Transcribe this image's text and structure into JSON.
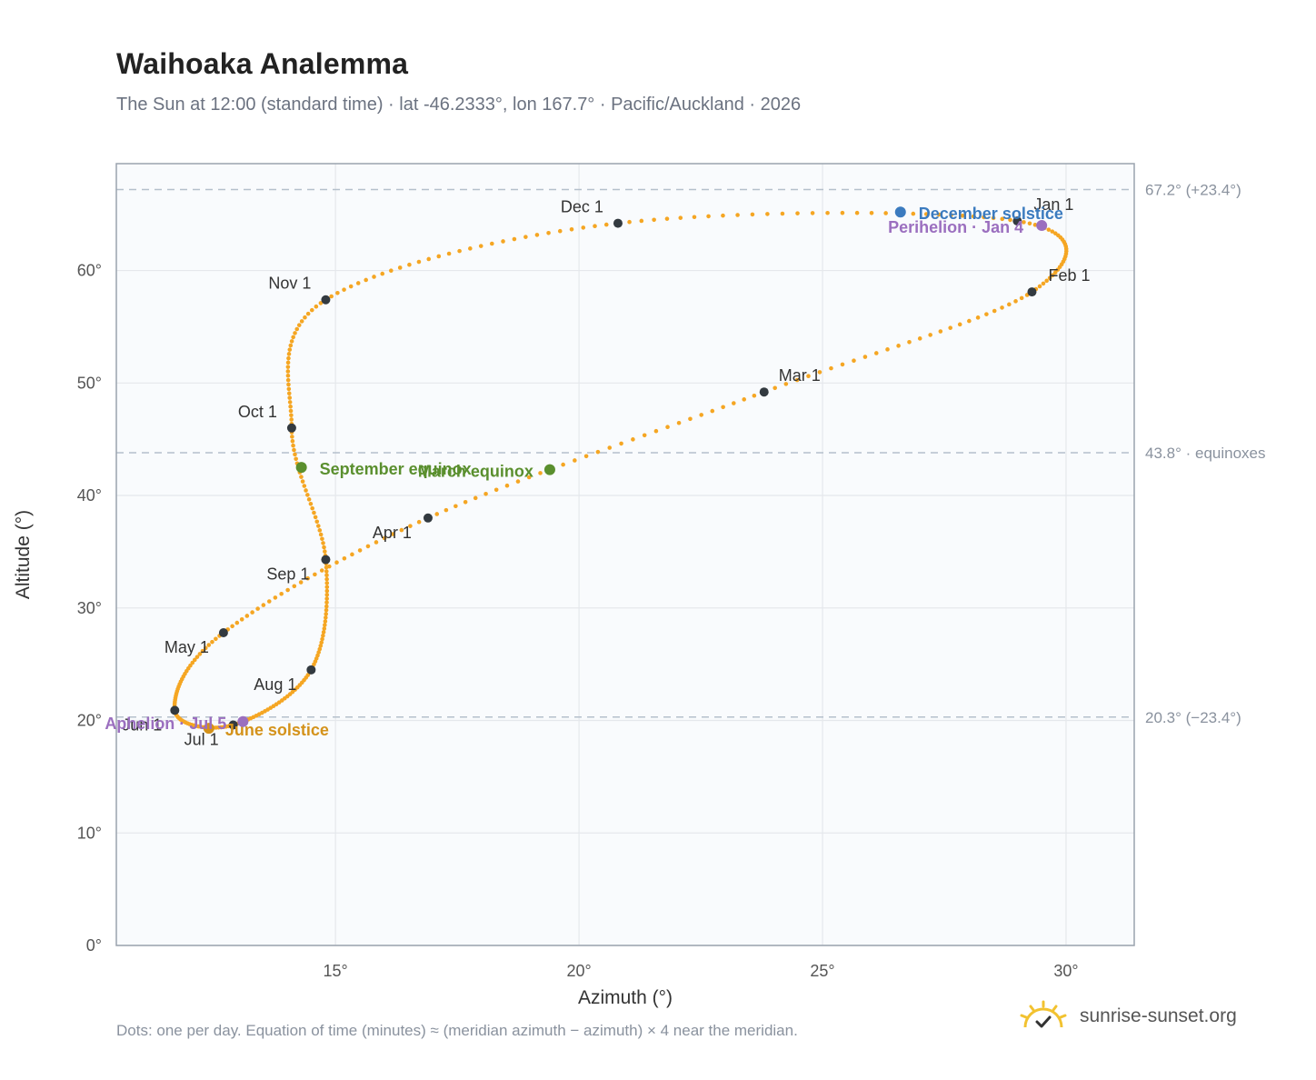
{
  "header": {
    "title": "Waihoaka Analemma",
    "subtitle": "The Sun at 12:00 (standard time) · lat -46.2333°, lon 167.7° · Pacific/Auckland · 2026"
  },
  "footnote": "Dots: one per day. Equation of time (minutes) ≈ (meridian azimuth − azimuth) × 4 near the meridian.",
  "brand": {
    "name": "sunrise-sunset.org",
    "icon": "sun-check-icon"
  },
  "colors": {
    "curve": "#f5a623",
    "month_dot": "#333a40",
    "equinox": "#5a8f2e",
    "december_solstice": "#3b7bbf",
    "june_solstice": "#d4921a",
    "apsis": "#9b6fbf",
    "grid": "#e5e8ec",
    "frame": "#9aa3ae",
    "reference_line": "#b5c0cc"
  },
  "chart_data": {
    "type": "scatter",
    "xlabel": "Azimuth (°)",
    "ylabel": "Altitude (°)",
    "xlim": [
      10.5,
      31.4
    ],
    "ylim": [
      0,
      69.5
    ],
    "xticks": [
      15,
      20,
      25,
      30
    ],
    "xtick_labels": [
      "15°",
      "20°",
      "25°",
      "30°"
    ],
    "yticks": [
      0,
      10,
      20,
      30,
      40,
      50,
      60
    ],
    "ytick_labels": [
      "0°",
      "10°",
      "20°",
      "30°",
      "40°",
      "50°",
      "60°"
    ],
    "grid": true,
    "reference_lines": [
      {
        "altitude": 67.2,
        "label": "67.2° (+23.4°)"
      },
      {
        "altitude": 43.8,
        "label": "43.8° · equinoxes"
      },
      {
        "altitude": 20.3,
        "label": "20.3° (−23.4°)"
      }
    ],
    "month_markers": [
      {
        "label": "Jan 1",
        "azimuth": 29.0,
        "altitude": 64.4
      },
      {
        "label": "Feb 1",
        "azimuth": 29.3,
        "altitude": 58.1
      },
      {
        "label": "Mar 1",
        "azimuth": 23.8,
        "altitude": 49.2
      },
      {
        "label": "Apr 1",
        "azimuth": 16.9,
        "altitude": 38.0
      },
      {
        "label": "May 1",
        "azimuth": 12.7,
        "altitude": 27.8
      },
      {
        "label": "Jun 1",
        "azimuth": 11.7,
        "altitude": 20.9
      },
      {
        "label": "Jul 1",
        "azimuth": 12.9,
        "altitude": 19.6
      },
      {
        "label": "Aug 1",
        "azimuth": 14.5,
        "altitude": 24.5
      },
      {
        "label": "Sep 1",
        "azimuth": 14.8,
        "altitude": 34.3
      },
      {
        "label": "Oct 1",
        "azimuth": 14.1,
        "altitude": 46.0
      },
      {
        "label": "Nov 1",
        "azimuth": 14.8,
        "altitude": 57.4
      },
      {
        "label": "Dec 1",
        "azimuth": 20.8,
        "altitude": 64.2
      }
    ],
    "events": [
      {
        "label": "December solstice",
        "azimuth": 26.6,
        "altitude": 65.2,
        "color": "#3b7bbf"
      },
      {
        "label": "Perihelion · Jan 4",
        "azimuth": 29.5,
        "altitude": 64.0,
        "color": "#9b6fbf"
      },
      {
        "label": "March equinox",
        "azimuth": 19.4,
        "altitude": 42.3,
        "color": "#5a8f2e"
      },
      {
        "label": "September equinox",
        "azimuth": 14.3,
        "altitude": 42.5,
        "color": "#5a8f2e"
      },
      {
        "label": "June solstice",
        "azimuth": 12.4,
        "altitude": 19.3,
        "color": "#d4921a"
      },
      {
        "label": "Aphelion · Jul 5",
        "azimuth": 13.1,
        "altitude": 19.9,
        "color": "#9b6fbf"
      }
    ]
  }
}
